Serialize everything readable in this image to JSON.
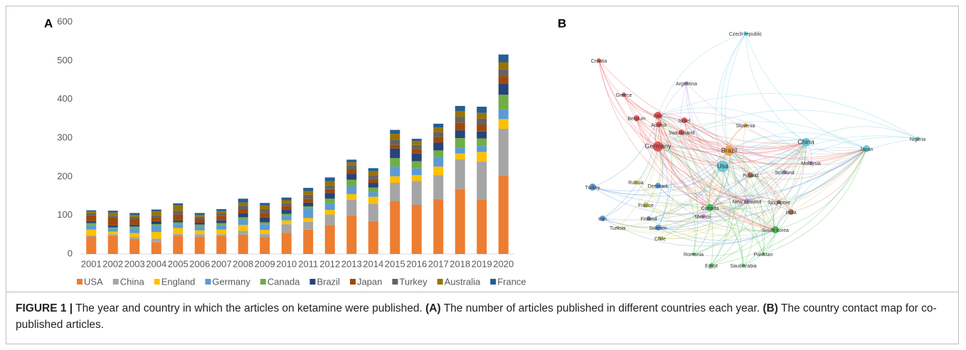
{
  "panel_labels": [
    "A",
    "B"
  ],
  "chart_data": {
    "type": "bar",
    "stacked": true,
    "categories": [
      "2001",
      "2002",
      "2003",
      "2004",
      "2005",
      "2006",
      "2007",
      "2008",
      "2009",
      "2010",
      "2011",
      "2012",
      "2013",
      "2014",
      "2015",
      "2016",
      "2017",
      "2018",
      "2019",
      "2020"
    ],
    "ylim": [
      0,
      600
    ],
    "yticks": [
      0,
      100,
      200,
      300,
      400,
      500,
      600
    ],
    "grid": false,
    "legend": "bottom",
    "series": [
      {
        "name": "USA",
        "color": "#ed7d31",
        "values": [
          45,
          46,
          39,
          30,
          47,
          44,
          46,
          50,
          44,
          55,
          63,
          75,
          100,
          85,
          137,
          127,
          142,
          168,
          141,
          204
        ]
      },
      {
        "name": "China",
        "color": "#a5a5a5",
        "values": [
          3,
          5,
          5,
          10,
          5,
          7,
          5,
          10,
          8,
          22,
          20,
          27,
          40,
          45,
          47,
          62,
          62,
          77,
          98,
          120
        ]
      },
      {
        "name": "England",
        "color": "#ffc000",
        "values": [
          15,
          7,
          10,
          17,
          15,
          10,
          12,
          15,
          10,
          10,
          10,
          12,
          15,
          18,
          17,
          15,
          22,
          15,
          25,
          25
        ]
      },
      {
        "name": "Germany",
        "color": "#5b9bd5",
        "values": [
          12,
          8,
          12,
          15,
          10,
          10,
          12,
          15,
          15,
          12,
          25,
          17,
          20,
          12,
          25,
          18,
          25,
          15,
          15,
          25
        ]
      },
      {
        "name": "Canada",
        "color": "#70ad47",
        "values": [
          5,
          3,
          5,
          5,
          5,
          5,
          5,
          5,
          5,
          5,
          5,
          12,
          17,
          12,
          22,
          18,
          17,
          25,
          20,
          38
        ]
      },
      {
        "name": "Brazil",
        "color": "#264478",
        "values": [
          5,
          5,
          5,
          8,
          5,
          5,
          7,
          10,
          12,
          10,
          10,
          15,
          15,
          12,
          25,
          20,
          20,
          20,
          18,
          28
        ]
      },
      {
        "name": "Japan",
        "color": "#9e480e",
        "values": [
          15,
          20,
          15,
          10,
          15,
          10,
          12,
          10,
          12,
          10,
          10,
          10,
          12,
          10,
          10,
          12,
          15,
          20,
          18,
          20
        ]
      },
      {
        "name": "Turkey",
        "color": "#636363",
        "values": [
          5,
          5,
          5,
          5,
          10,
          5,
          7,
          10,
          10,
          7,
          10,
          10,
          10,
          10,
          13,
          10,
          12,
          15,
          15,
          18
        ]
      },
      {
        "name": "Australia",
        "color": "#997300",
        "values": [
          5,
          8,
          5,
          10,
          15,
          5,
          5,
          8,
          10,
          8,
          10,
          10,
          8,
          10,
          15,
          10,
          12,
          15,
          15,
          18
        ]
      },
      {
        "name": "France",
        "color": "#255e91",
        "values": [
          3,
          5,
          5,
          5,
          4,
          5,
          5,
          10,
          6,
          7,
          8,
          10,
          7,
          8,
          10,
          6,
          10,
          13,
          16,
          20
        ]
      }
    ]
  },
  "network": {
    "nodes": [
      "Czech republic",
      "Croatia",
      "Argentina",
      "Greece",
      "Italy",
      "Belgium",
      "Israel",
      "Austria",
      "Slovenia",
      "Switzerland",
      "Germany",
      "Brazil",
      "China",
      "Nigeria",
      "Japan",
      "Malaysia",
      "Usa",
      "Scotland",
      "Poland",
      "Russia",
      "Denmark",
      "Turkey",
      "France",
      "Canada",
      "New zealand",
      "Singapore",
      "India",
      "Mexico",
      "Iran",
      "Finland",
      "Tunisia",
      "Sweden",
      "South korea",
      "Chile",
      "Romania",
      "Pakistan",
      "Egypt",
      "Saudiarabia"
    ]
  },
  "caption": {
    "label": "FIGURE 1 |",
    "text1": " The year and country in which the articles on ketamine were published. ",
    "a": "(A)",
    "text2": " The number of articles published in different countries each year. ",
    "b": "(B)",
    "text3": " The country contact map for co-published articles."
  }
}
